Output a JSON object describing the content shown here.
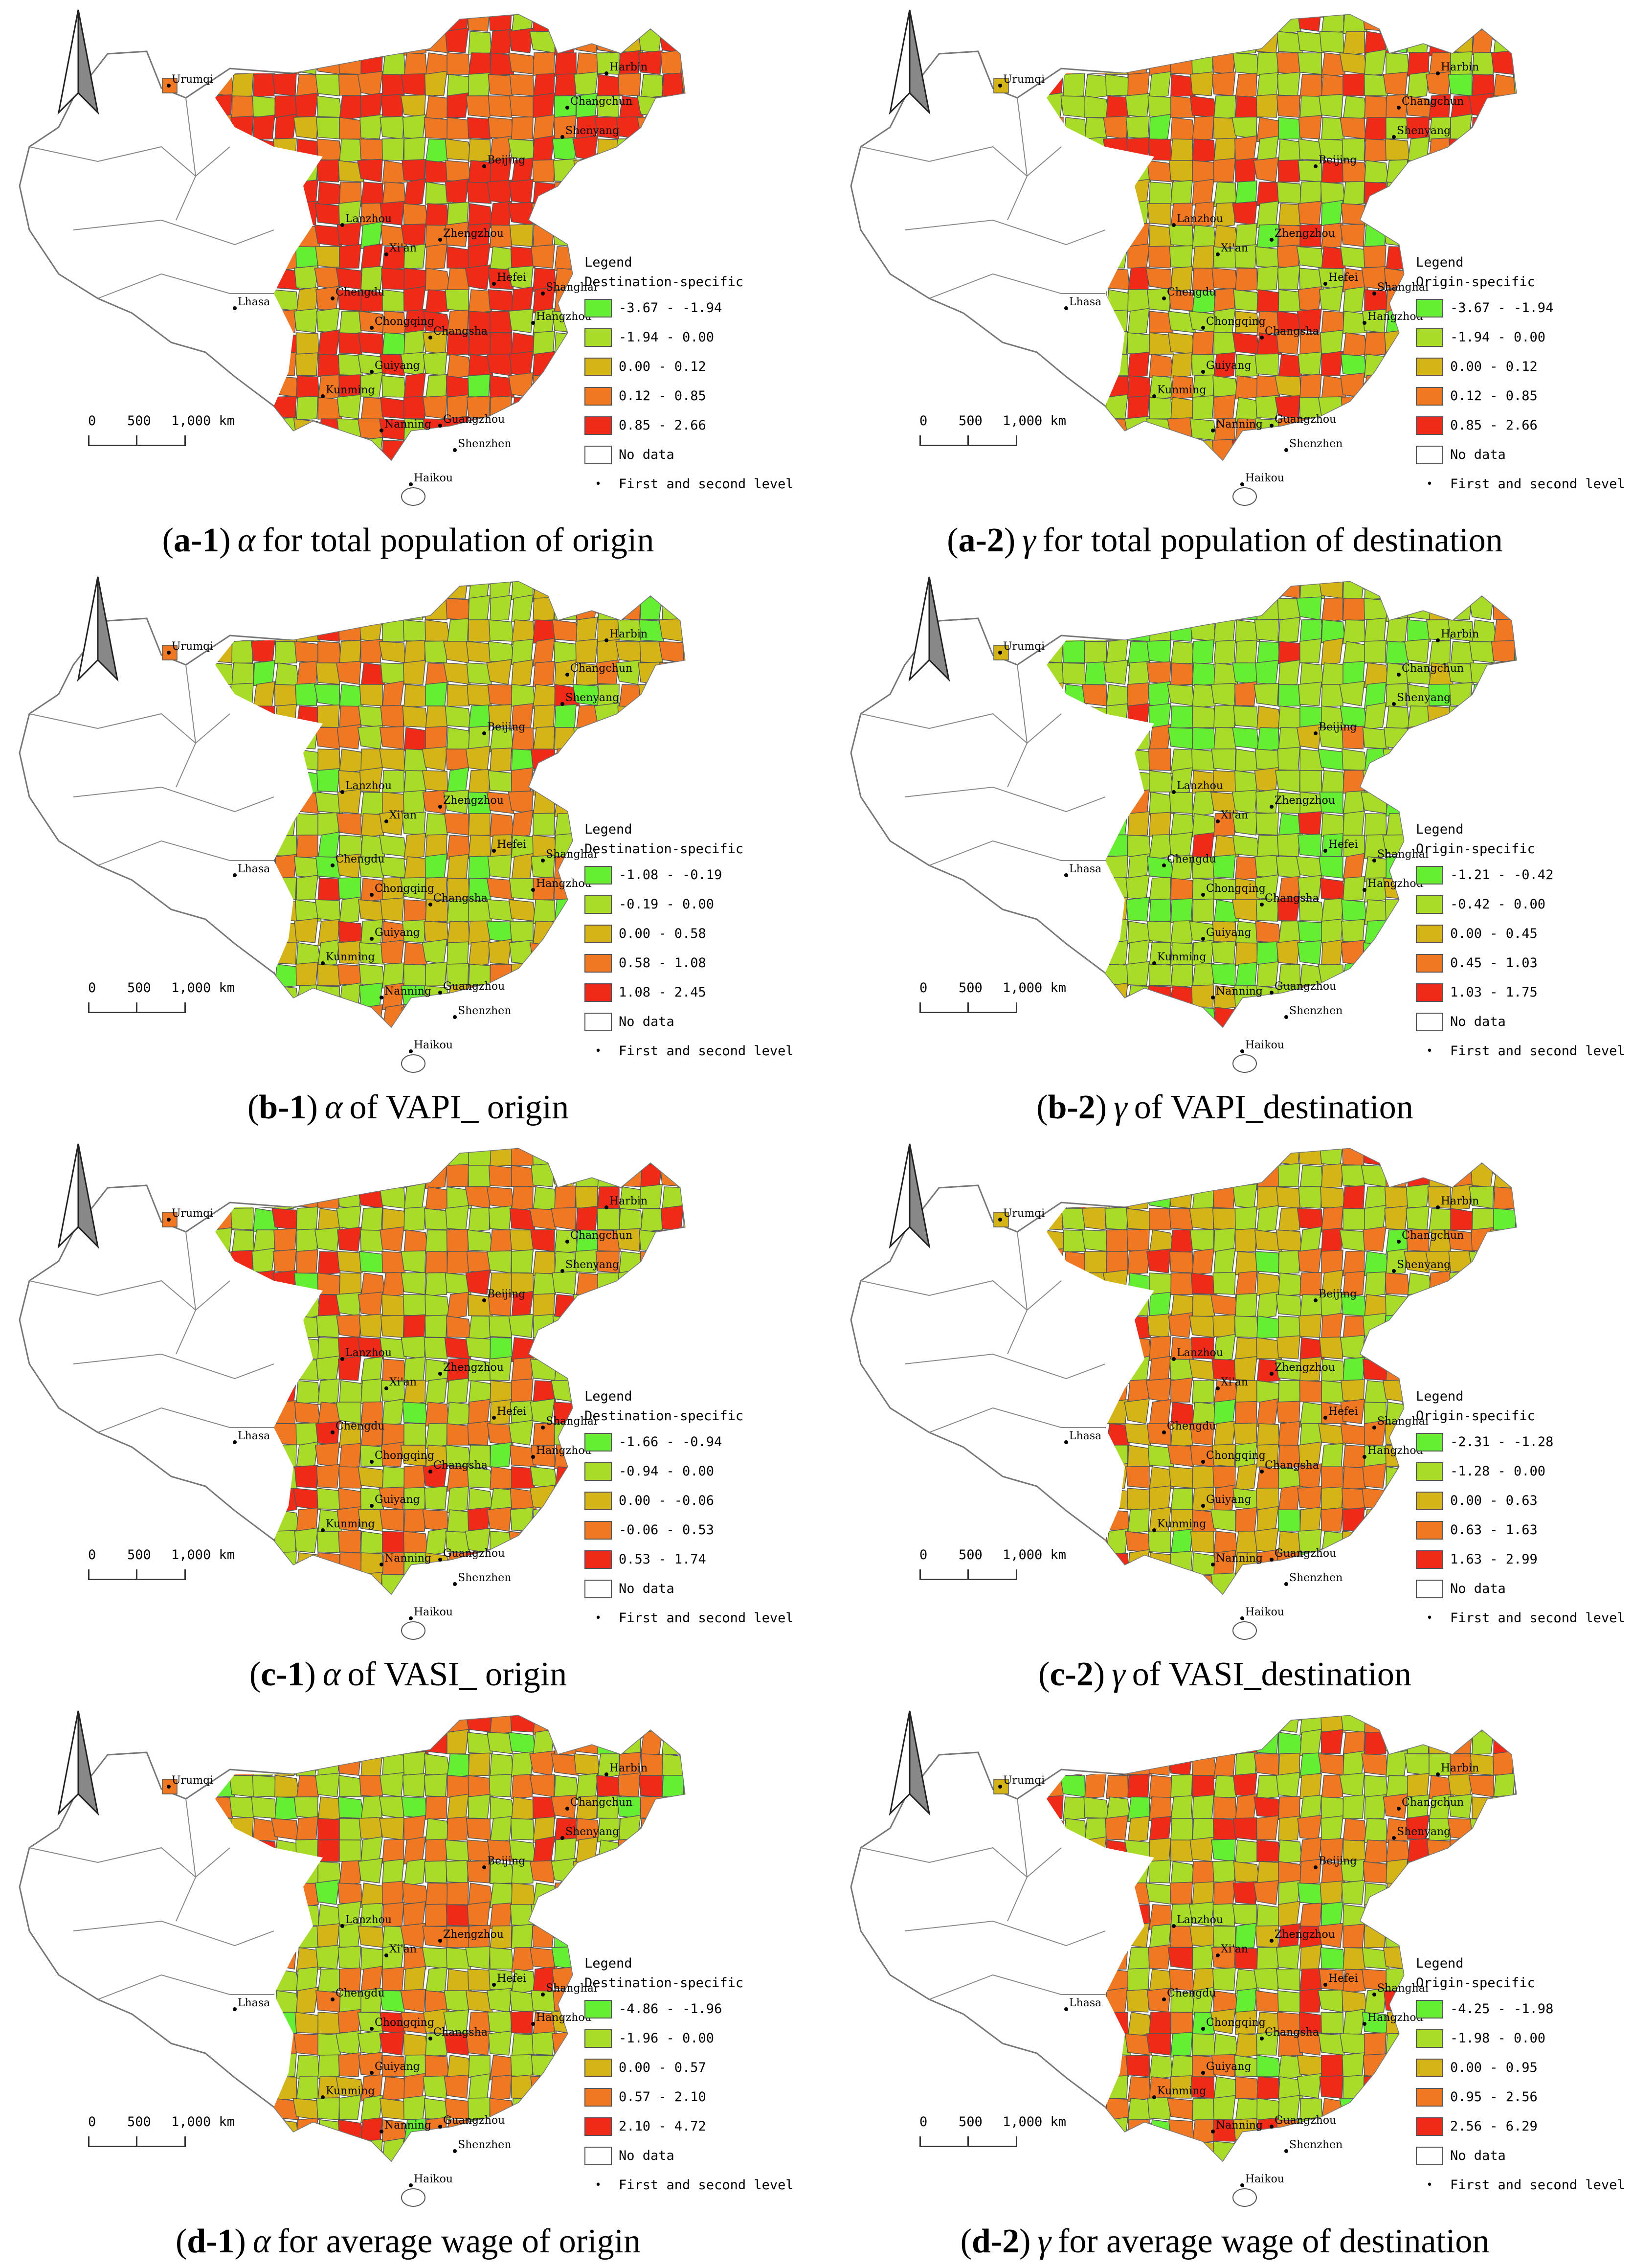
{
  "map_panels": [
    {
      "id": "a-1",
      "caption": {
        "label": "a-1",
        "symbol": "α",
        "text": "for total population of origin"
      },
      "legend": {
        "title": "Legend",
        "subtitle": "Destination-specific",
        "classes": [
          "-3.67 - -1.94",
          "-1.94 - 0.00",
          "0.00 - 0.12",
          "0.12 - 0.85",
          "0.85 - 2.66"
        ]
      }
    },
    {
      "id": "a-2",
      "caption": {
        "label": "a-2",
        "symbol": "γ",
        "text": "for total population of destination"
      },
      "legend": {
        "title": "Legend",
        "subtitle": "Origin-specific",
        "classes": [
          "-3.67 - -1.94",
          "-1.94 - 0.00",
          "0.00 - 0.12",
          "0.12 - 0.85",
          "0.85 - 2.66"
        ]
      }
    },
    {
      "id": "b-1",
      "caption": {
        "label": "b-1",
        "symbol": "α",
        "text": "of VAPI_ origin"
      },
      "legend": {
        "title": "Legend",
        "subtitle": "Destination-specific",
        "classes": [
          "-1.08 - -0.19",
          "-0.19 - 0.00",
          "0.00 - 0.58",
          "0.58 - 1.08",
          "1.08 - 2.45"
        ]
      }
    },
    {
      "id": "b-2",
      "caption": {
        "label": "b-2",
        "symbol": "γ",
        "text": "of VAPI_destination"
      },
      "legend": {
        "title": "Legend",
        "subtitle": "Origin-specific",
        "classes": [
          "-1.21 - -0.42",
          "-0.42 - 0.00",
          "0.00 - 0.45",
          "0.45 - 1.03",
          "1.03 - 1.75"
        ]
      }
    },
    {
      "id": "c-1",
      "caption": {
        "label": "c-1",
        "symbol": "α",
        "text": "of VASI_ origin"
      },
      "legend": {
        "title": "Legend",
        "subtitle": "Destination-specific",
        "classes": [
          "-1.66 - -0.94",
          "-0.94 - 0.00",
          "0.00 - -0.06",
          "-0.06 - 0.53",
          "0.53 - 1.74"
        ]
      }
    },
    {
      "id": "c-2",
      "caption": {
        "label": "c-2",
        "symbol": "γ",
        "text": "of VASI_destination"
      },
      "legend": {
        "title": "Legend",
        "subtitle": "Origin-specific",
        "classes": [
          "-2.31 - -1.28",
          "-1.28 - 0.00",
          "0.00 - 0.63",
          "0.63 - 1.63",
          "1.63 - 2.99"
        ]
      }
    },
    {
      "id": "d-1",
      "caption": {
        "label": "d-1",
        "symbol": "α",
        "text": "for average wage of origin"
      },
      "legend": {
        "title": "Legend",
        "subtitle": "Destination-specific",
        "classes": [
          "-4.86 - -1.96",
          "-1.96 - 0.00",
          "0.00 - 0.57",
          "0.57 - 2.10",
          "2.10 - 4.72"
        ]
      }
    },
    {
      "id": "d-2",
      "caption": {
        "label": "d-2",
        "symbol": "γ",
        "text": "for average wage of destination"
      },
      "legend": {
        "title": "Legend",
        "subtitle": "Origin-specific",
        "classes": [
          "-4.25 - -1.98",
          "-1.98 - 0.00",
          "0.00 - 0.95",
          "0.95 - 2.56",
          "2.56 - 6.29"
        ]
      }
    }
  ],
  "legend_common": {
    "no_data_label": "No data",
    "city_point_label": "First and second level",
    "class_colors": [
      "#66ee33",
      "#a8dc28",
      "#d4b416",
      "#f07822",
      "#f02a18"
    ],
    "no_data_color": "#ffffff"
  },
  "scale_bar": {
    "labels": [
      "0",
      "500",
      "1,000 km"
    ]
  },
  "cities": [
    "Urumqi",
    "Harbin",
    "Changchun",
    "Shenyang",
    "Beijing",
    "Lanzhou",
    "Xi'an",
    "Zhengzhou",
    "Hefei",
    "Shanghai",
    "Chengdu",
    "Chongqing",
    "Changsha",
    "Hangzhou",
    "Lhasa",
    "Guiyang",
    "Kunming",
    "Nanning",
    "Guangzhou",
    "Shenzhen",
    "Haikou"
  ]
}
